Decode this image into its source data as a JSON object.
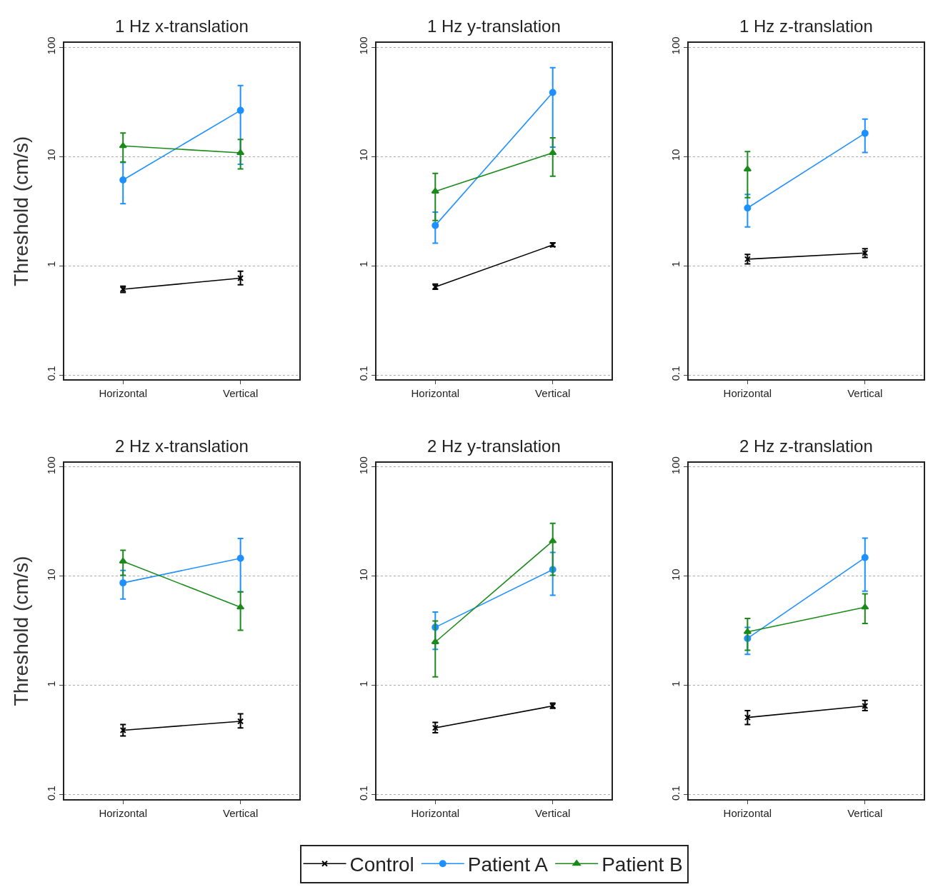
{
  "chart_data": [
    {
      "type": "line",
      "title": "1 Hz x-translation",
      "ylabel": "Threshold (cm/s)",
      "categories": [
        "Horizontal",
        "Vertical"
      ],
      "log": true,
      "ylim": [
        0.1,
        100
      ],
      "yticks": [
        0.1,
        1,
        10,
        100
      ],
      "grid": "y",
      "legend": "bottom",
      "line_style": "solid",
      "series": [
        {
          "name": "Control",
          "color": "#000000",
          "marker": "cross",
          "values": [
            0.61,
            0.77
          ],
          "errors": [
            [
              0.57,
              0.65
            ],
            [
              0.67,
              0.89
            ]
          ]
        },
        {
          "name": "Patient A",
          "color": "#1e90ff",
          "marker": "circle",
          "values": [
            6.1,
            26.4
          ],
          "errors": [
            [
              3.7,
              8.8
            ],
            [
              8.5,
              44.6
            ]
          ]
        },
        {
          "name": "Patient B",
          "color": "#1a8a1a",
          "marker": "triangle",
          "values": [
            12.5,
            10.8
          ],
          "errors": [
            [
              8.9,
              16.4
            ],
            [
              7.7,
              14.3
            ]
          ]
        }
      ]
    },
    {
      "type": "line",
      "title": "1 Hz y-translation",
      "categories": [
        "Horizontal",
        "Vertical"
      ],
      "log": true,
      "ylim": [
        0.1,
        100
      ],
      "yticks": [
        0.1,
        1,
        10,
        100
      ],
      "grid": "y",
      "line_style": "solid",
      "series": [
        {
          "color": "#000000",
          "marker": "cross",
          "values": [
            0.64,
            1.55
          ],
          "errors": [
            [
              0.61,
              0.68
            ],
            [
              1.5,
              1.62
            ]
          ]
        },
        {
          "color": "#1e90ff",
          "marker": "circle",
          "values": [
            2.34,
            38.5
          ],
          "errors": [
            [
              1.61,
              3.1
            ],
            [
              12.2,
              65
            ]
          ]
        },
        {
          "color": "#1a8a1a",
          "marker": "triangle",
          "values": [
            4.8,
            10.8
          ],
          "errors": [
            [
              2.6,
              7.0
            ],
            [
              6.6,
              14.8
            ]
          ]
        }
      ]
    },
    {
      "type": "line",
      "title": "1 Hz z-translation",
      "categories": [
        "Horizontal",
        "Vertical"
      ],
      "log": true,
      "ylim": [
        0.1,
        100
      ],
      "yticks": [
        0.1,
        1,
        10,
        100
      ],
      "grid": "y",
      "line_style": "solid",
      "series": [
        {
          "color": "#000000",
          "marker": "cross",
          "values": [
            1.15,
            1.31
          ],
          "errors": [
            [
              1.04,
              1.27
            ],
            [
              1.19,
              1.43
            ]
          ]
        },
        {
          "color": "#1e90ff",
          "marker": "circle",
          "values": [
            3.38,
            16.3
          ],
          "errors": [
            [
              2.27,
              4.5
            ],
            [
              10.9,
              22
            ]
          ]
        },
        {
          "color": "#1a8a1a",
          "marker": "triangle",
          "values": [
            7.65,
            null
          ],
          "errors": [
            [
              4.2,
              11.1
            ],
            null
          ]
        }
      ]
    },
    {
      "type": "line",
      "title": "2 Hz x-translation",
      "ylabel": "Threshold (cm/s)",
      "categories": [
        "Horizontal",
        "Vertical"
      ],
      "log": true,
      "ylim": [
        0.1,
        100
      ],
      "yticks": [
        0.1,
        1,
        10,
        100
      ],
      "grid": "y",
      "line_style": "solid",
      "series": [
        {
          "color": "#000000",
          "marker": "cross",
          "values": [
            0.39,
            0.47
          ],
          "errors": [
            [
              0.345,
              0.44
            ],
            [
              0.41,
              0.55
            ]
          ]
        },
        {
          "color": "#1e90ff",
          "marker": "circle",
          "values": [
            8.7,
            14.6
          ],
          "errors": [
            [
              6.2,
              11.3
            ],
            [
              7.2,
              22.2
            ]
          ]
        },
        {
          "color": "#1a8a1a",
          "marker": "triangle",
          "values": [
            13.7,
            5.2
          ],
          "errors": [
            [
              10.2,
              17.3
            ],
            [
              3.2,
              7.2
            ]
          ]
        }
      ]
    },
    {
      "type": "line",
      "title": "2 Hz y-translation",
      "categories": [
        "Horizontal",
        "Vertical"
      ],
      "log": true,
      "ylim": [
        0.1,
        100
      ],
      "yticks": [
        0.1,
        1,
        10,
        100
      ],
      "grid": "y",
      "line_style": "solid",
      "series": [
        {
          "color": "#000000",
          "marker": "cross",
          "values": [
            0.41,
            0.65
          ],
          "errors": [
            [
              0.37,
              0.46
            ],
            [
              0.62,
              0.69
            ]
          ]
        },
        {
          "color": "#1e90ff",
          "marker": "circle",
          "values": [
            3.41,
            11.5
          ],
          "errors": [
            [
              2.14,
              4.7
            ],
            [
              6.7,
              16.5
            ]
          ]
        },
        {
          "color": "#1a8a1a",
          "marker": "triangle",
          "values": [
            2.5,
            21
          ],
          "errors": [
            [
              1.2,
              3.9
            ],
            [
              10.2,
              30.5
            ]
          ]
        }
      ]
    },
    {
      "type": "line",
      "title": "2 Hz z-translation",
      "categories": [
        "Horizontal",
        "Vertical"
      ],
      "log": true,
      "ylim": [
        0.1,
        100
      ],
      "yticks": [
        0.1,
        1,
        10,
        100
      ],
      "grid": "y",
      "line_style": "solid",
      "series": [
        {
          "color": "#000000",
          "marker": "cross",
          "values": [
            0.51,
            0.65
          ],
          "errors": [
            [
              0.44,
              0.59
            ],
            [
              0.59,
              0.73
            ]
          ]
        },
        {
          "color": "#1e90ff",
          "marker": "circle",
          "values": [
            2.7,
            14.8
          ],
          "errors": [
            [
              1.93,
              3.4
            ],
            [
              7.3,
              22.3
            ]
          ]
        },
        {
          "color": "#1a8a1a",
          "marker": "triangle",
          "values": [
            3.1,
            5.2
          ],
          "errors": [
            [
              2.1,
              4.1
            ],
            [
              3.7,
              6.9
            ]
          ]
        }
      ]
    }
  ]
}
